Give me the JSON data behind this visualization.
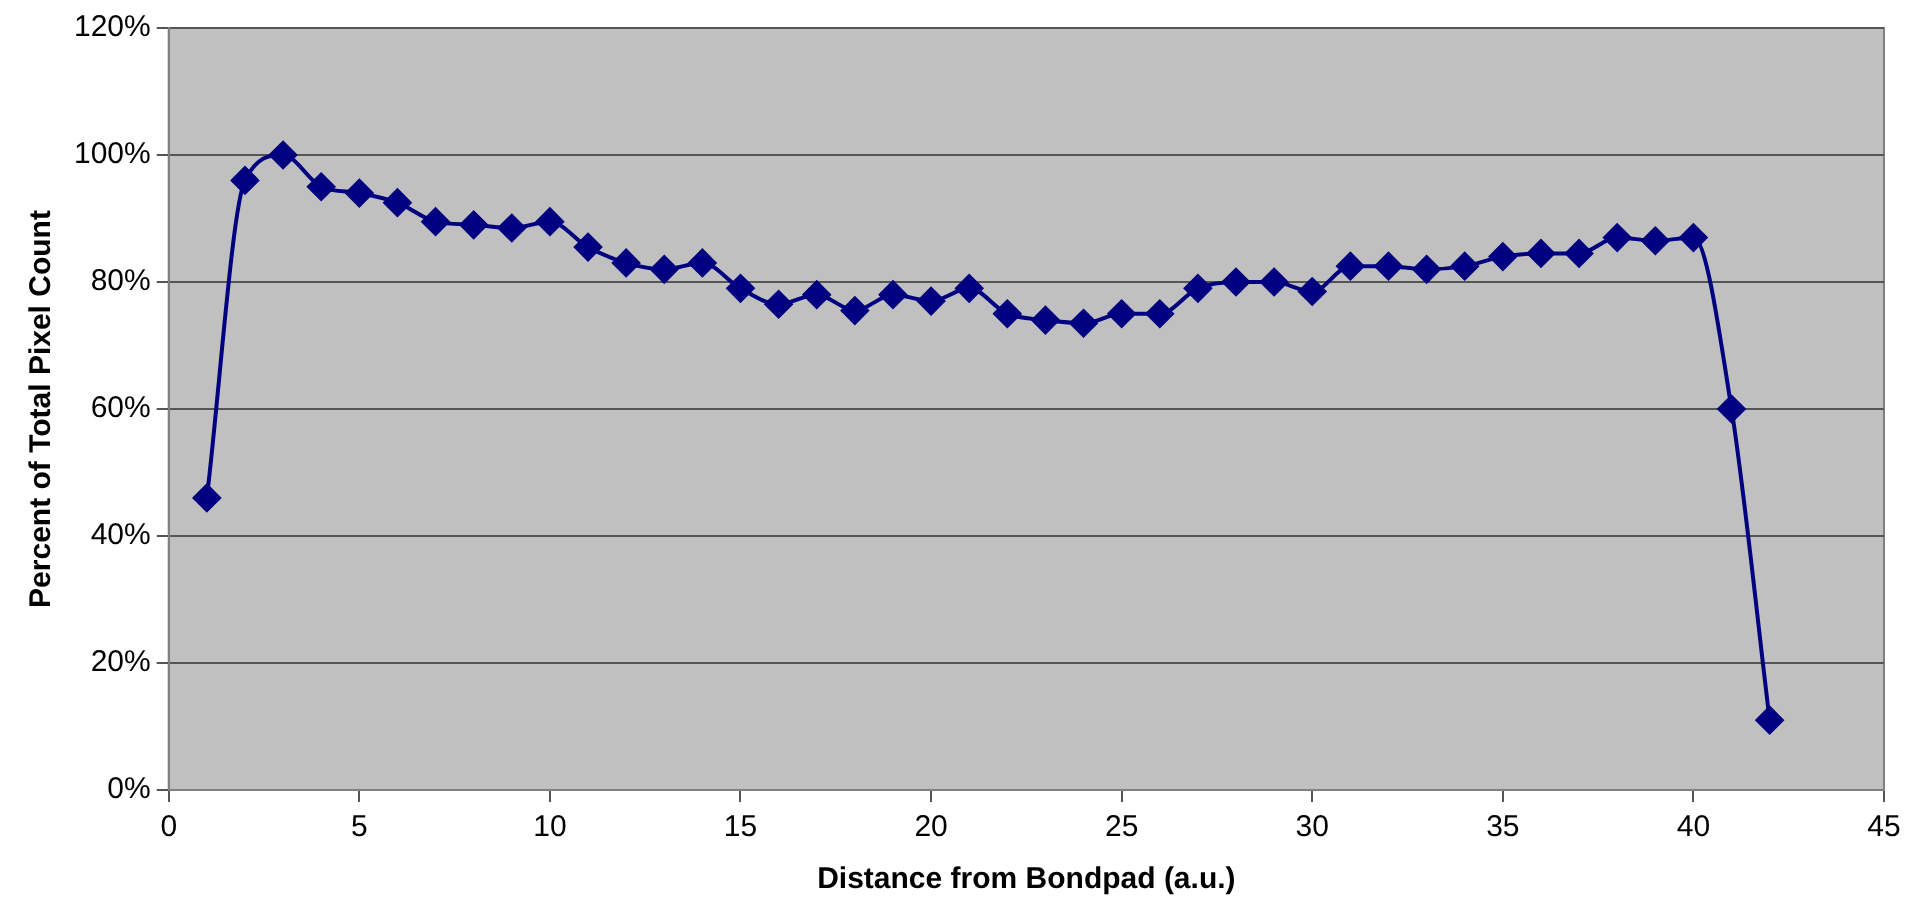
{
  "chart_data": {
    "type": "line",
    "xlabel": "Distance from Bondpad (a.u.)",
    "ylabel": "Percent of Total Pixel Count",
    "x": [
      1,
      2,
      3,
      4,
      5,
      6,
      7,
      8,
      9,
      10,
      11,
      12,
      13,
      14,
      15,
      16,
      17,
      18,
      19,
      20,
      21,
      22,
      23,
      24,
      25,
      26,
      27,
      28,
      29,
      30,
      31,
      32,
      33,
      34,
      35,
      36,
      37,
      38,
      39,
      40,
      41,
      42
    ],
    "series": [
      {
        "color": "#000080",
        "values": [
          46,
          96,
          100,
          95,
          94,
          92.5,
          89.5,
          89,
          88.5,
          89.5,
          85.5,
          83,
          82,
          83,
          79,
          76.5,
          78,
          75.5,
          78,
          77,
          79,
          75,
          74,
          73.5,
          75,
          75,
          79,
          80,
          80,
          78.5,
          82.5,
          82.5,
          82,
          82.5,
          84,
          84.5,
          84.5,
          87,
          86.5,
          87,
          60,
          11
        ]
      }
    ],
    "xlim": [
      0,
      45
    ],
    "xticks": [
      0,
      5,
      10,
      15,
      20,
      25,
      30,
      35,
      40,
      45
    ],
    "ylim": [
      0,
      120
    ],
    "yticks": [
      {
        "value": 0,
        "label": "0%"
      },
      {
        "value": 20,
        "label": "20%"
      },
      {
        "value": 40,
        "label": "40%"
      },
      {
        "value": 60,
        "label": "60%"
      },
      {
        "value": 80,
        "label": "80%"
      },
      {
        "value": 100,
        "label": "100%"
      },
      {
        "value": 120,
        "label": "120%"
      }
    ],
    "grid": "y",
    "legend": false,
    "marker": "diamond",
    "line_style": "solid"
  }
}
